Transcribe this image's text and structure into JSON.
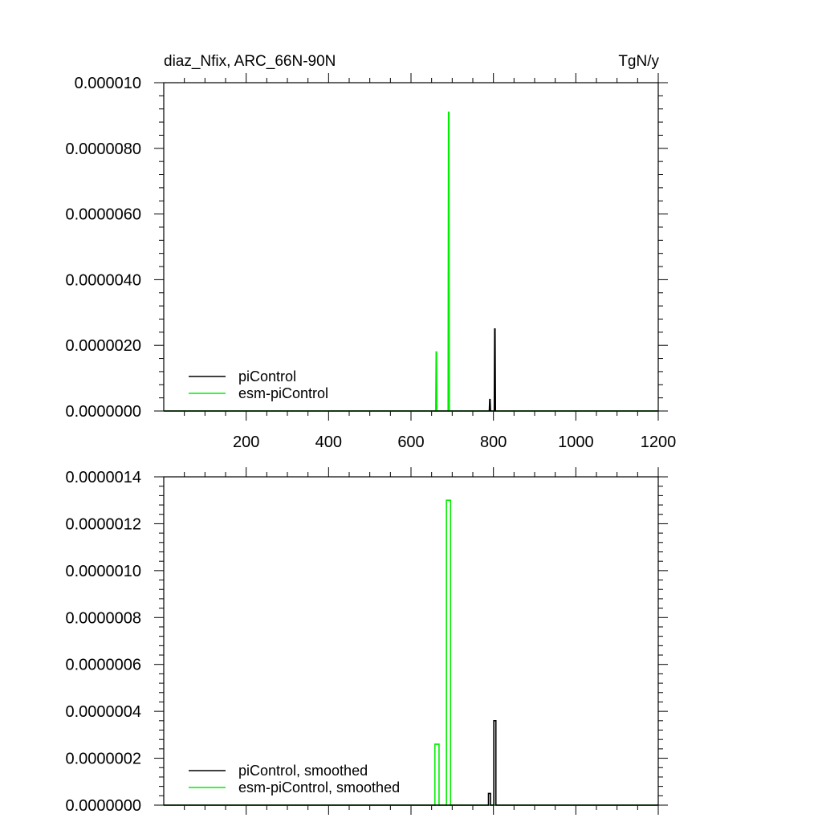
{
  "header": {
    "title_left": "diaz_Nfix, ARC_66N-90N",
    "title_right": "TgN/y"
  },
  "colors": {
    "piControl": "#000000",
    "esm_piControl": "#00ee00"
  },
  "chart_data": [
    {
      "type": "line",
      "xlim": [
        0,
        1200
      ],
      "ylim": [
        0,
        1e-05
      ],
      "x_ticks": [
        200,
        400,
        600,
        800,
        1000,
        1200
      ],
      "x_tick_labels": [
        "200",
        "400",
        "600",
        "800",
        "1000",
        "1200"
      ],
      "y_ticks": [
        0,
        2e-06,
        4e-06,
        6e-06,
        8e-06,
        1e-05
      ],
      "y_tick_labels": [
        "0.0000000",
        "0.0000020",
        "0.0000040",
        "0.0000060",
        "0.0000080",
        "0.000010"
      ],
      "legend_position": "bottom-left",
      "series": [
        {
          "name": "piControl",
          "color": "#000000",
          "x": [
            0,
            790,
            791,
            792,
            793,
            802,
            803,
            804,
            805,
            1200
          ],
          "y": [
            0,
            0,
            3.5e-07,
            3.5e-07,
            0,
            0,
            2.5e-06,
            2.5e-06,
            0,
            0
          ]
        },
        {
          "name": "esm-piControl",
          "color": "#00ee00",
          "x": [
            0,
            660,
            661,
            662,
            663,
            690,
            691,
            692,
            693,
            1200
          ],
          "y": [
            0,
            0,
            1.8e-06,
            1.8e-06,
            0,
            0,
            9.1e-06,
            9.1e-06,
            0,
            0
          ]
        }
      ]
    },
    {
      "type": "line",
      "xlim": [
        0,
        1200
      ],
      "ylim": [
        0,
        1.4e-06
      ],
      "y_ticks": [
        0,
        2e-07,
        4e-07,
        6e-07,
        8e-07,
        1e-06,
        1.2e-06,
        1.4e-06
      ],
      "y_tick_labels": [
        "0.0000000",
        "0.0000002",
        "0.0000004",
        "0.0000006",
        "0.0000008",
        "0.0000010",
        "0.0000012",
        "0.0000014"
      ],
      "legend_position": "bottom-left",
      "series": [
        {
          "name": "piControl, smoothed",
          "color": "#000000",
          "x": [
            0,
            788,
            788,
            793,
            793,
            801,
            801,
            806,
            806,
            1200
          ],
          "y": [
            0,
            0,
            5e-08,
            5e-08,
            0,
            0,
            3.6e-07,
            3.6e-07,
            0,
            0
          ]
        },
        {
          "name": "esm-piControl, smoothed",
          "color": "#00ee00",
          "x": [
            0,
            658,
            658,
            668,
            668,
            686,
            686,
            696,
            696,
            1200
          ],
          "y": [
            0,
            0,
            2.6e-07,
            2.6e-07,
            0,
            0,
            1.3e-06,
            1.3e-06,
            0,
            0
          ]
        }
      ]
    }
  ]
}
